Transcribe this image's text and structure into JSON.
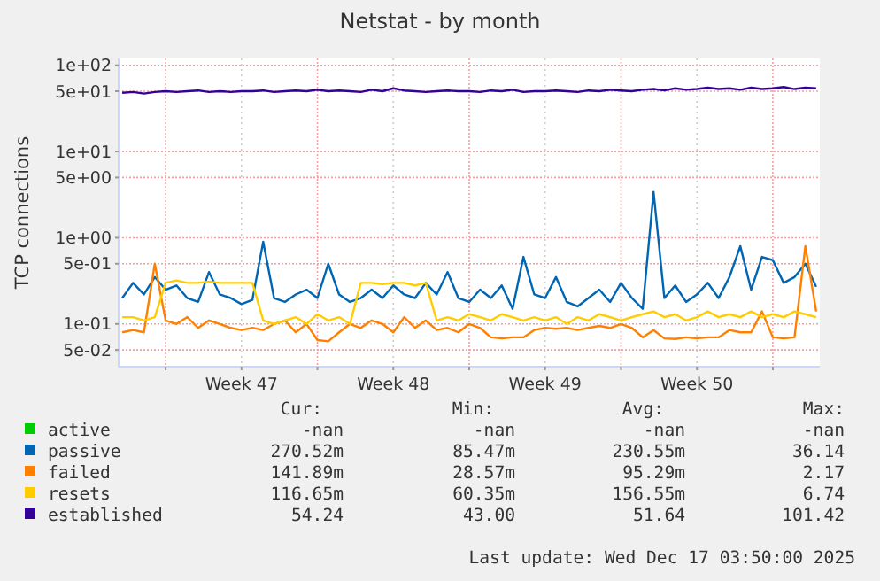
{
  "chart_data": {
    "type": "line",
    "title": "Netstat - by month",
    "ylabel": "TCP connections",
    "log": "y",
    "grid": true,
    "legend": "bottom",
    "marker": "none",
    "line_style": "solid",
    "xlim": [
      "2025-11-14T20:00",
      "2025-12-17T04:00"
    ],
    "xticks": [
      {
        "value": "2025-11-17T00:00",
        "label": null
      },
      {
        "value": "2025-11-20T12:00",
        "label": "Week 47"
      },
      {
        "value": "2025-11-24T00:00",
        "label": null
      },
      {
        "value": "2025-11-27T12:00",
        "label": "Week 48"
      },
      {
        "value": "2025-12-01T00:00",
        "label": null
      },
      {
        "value": "2025-12-04T12:00",
        "label": "Week 49"
      },
      {
        "value": "2025-12-08T00:00",
        "label": null
      },
      {
        "value": "2025-12-11T12:00",
        "label": "Week 50"
      },
      {
        "value": "2025-12-15T00:00",
        "label": null
      }
    ],
    "ylim": [
      0.032,
      120
    ],
    "yticks": [
      {
        "value": 0.05,
        "label": "5e-02"
      },
      {
        "value": 0.1,
        "label": "1e-01"
      },
      {
        "value": 0.5,
        "label": "5e-01"
      },
      {
        "value": 1,
        "label": "1e+00"
      },
      {
        "value": 5,
        "label": "5e+00"
      },
      {
        "value": 10,
        "label": "1e+01"
      },
      {
        "value": 50,
        "label": "5e+01"
      },
      {
        "value": 100,
        "label": "1e+02"
      }
    ],
    "x": [
      "2025-11-15T00:00",
      "2025-11-15T12:00",
      "2025-11-16T00:00",
      "2025-11-16T12:00",
      "2025-11-17T00:00",
      "2025-11-17T12:00",
      "2025-11-18T00:00",
      "2025-11-18T12:00",
      "2025-11-19T00:00",
      "2025-11-19T12:00",
      "2025-11-20T00:00",
      "2025-11-20T12:00",
      "2025-11-21T00:00",
      "2025-11-21T12:00",
      "2025-11-22T00:00",
      "2025-11-22T12:00",
      "2025-11-23T00:00",
      "2025-11-23T12:00",
      "2025-11-24T00:00",
      "2025-11-24T12:00",
      "2025-11-25T00:00",
      "2025-11-25T12:00",
      "2025-11-26T00:00",
      "2025-11-26T12:00",
      "2025-11-27T00:00",
      "2025-11-27T12:00",
      "2025-11-28T00:00",
      "2025-11-28T12:00",
      "2025-11-29T00:00",
      "2025-11-29T12:00",
      "2025-11-30T00:00",
      "2025-11-30T12:00",
      "2025-12-01T00:00",
      "2025-12-01T12:00",
      "2025-12-02T00:00",
      "2025-12-02T12:00",
      "2025-12-03T00:00",
      "2025-12-03T12:00",
      "2025-12-04T00:00",
      "2025-12-04T12:00",
      "2025-12-05T00:00",
      "2025-12-05T12:00",
      "2025-12-06T00:00",
      "2025-12-06T12:00",
      "2025-12-07T00:00",
      "2025-12-07T12:00",
      "2025-12-08T00:00",
      "2025-12-08T12:00",
      "2025-12-09T00:00",
      "2025-12-09T12:00",
      "2025-12-10T00:00",
      "2025-12-10T12:00",
      "2025-12-11T00:00",
      "2025-12-11T12:00",
      "2025-12-12T00:00",
      "2025-12-12T12:00",
      "2025-12-13T00:00",
      "2025-12-13T12:00",
      "2025-12-14T00:00",
      "2025-12-14T12:00",
      "2025-12-15T00:00",
      "2025-12-15T12:00",
      "2025-12-16T00:00",
      "2025-12-16T12:00",
      "2025-12-17T00:00"
    ],
    "series": [
      {
        "name": "active",
        "color": "#00cc00",
        "values": [
          null,
          null,
          null,
          null,
          null,
          null,
          null,
          null,
          null,
          null,
          null,
          null,
          null,
          null,
          null,
          null,
          null,
          null,
          null,
          null,
          null,
          null,
          null,
          null,
          null,
          null,
          null,
          null,
          null,
          null,
          null,
          null,
          null,
          null,
          null,
          null,
          null,
          null,
          null,
          null,
          null,
          null,
          null,
          null,
          null,
          null,
          null,
          null,
          null,
          null,
          null,
          null,
          null,
          null,
          null,
          null,
          null,
          null,
          null,
          null,
          null,
          null,
          null,
          null,
          null
        ]
      },
      {
        "name": "passive",
        "color": "#0066b3",
        "values": [
          0.2,
          0.3,
          0.22,
          0.35,
          0.25,
          0.28,
          0.2,
          0.18,
          0.4,
          0.22,
          0.2,
          0.17,
          0.19,
          0.9,
          0.2,
          0.18,
          0.22,
          0.25,
          0.2,
          0.5,
          0.22,
          0.18,
          0.2,
          0.25,
          0.2,
          0.28,
          0.22,
          0.2,
          0.3,
          0.22,
          0.4,
          0.2,
          0.18,
          0.25,
          0.2,
          0.28,
          0.15,
          0.6,
          0.22,
          0.2,
          0.35,
          0.18,
          0.16,
          0.2,
          0.25,
          0.18,
          0.3,
          0.2,
          0.15,
          3.4,
          0.2,
          0.28,
          0.18,
          0.22,
          0.3,
          0.2,
          0.35,
          0.8,
          0.25,
          0.6,
          0.55,
          0.3,
          0.35,
          0.5,
          0.27
        ]
      },
      {
        "name": "failed",
        "color": "#ff8000",
        "values": [
          0.08,
          0.085,
          0.08,
          0.5,
          0.11,
          0.1,
          0.12,
          0.09,
          0.11,
          0.1,
          0.09,
          0.085,
          0.09,
          0.085,
          0.1,
          0.11,
          0.08,
          0.1,
          0.065,
          0.063,
          0.08,
          0.1,
          0.09,
          0.11,
          0.1,
          0.08,
          0.12,
          0.09,
          0.11,
          0.085,
          0.09,
          0.08,
          0.1,
          0.09,
          0.07,
          0.068,
          0.07,
          0.07,
          0.085,
          0.09,
          0.088,
          0.09,
          0.085,
          0.09,
          0.095,
          0.09,
          0.1,
          0.09,
          0.07,
          0.085,
          0.068,
          0.067,
          0.07,
          0.068,
          0.07,
          0.07,
          0.085,
          0.08,
          0.08,
          0.14,
          0.07,
          0.068,
          0.07,
          0.8,
          0.14
        ]
      },
      {
        "name": "resets",
        "color": "#ffcc00",
        "values": [
          0.12,
          0.12,
          0.11,
          0.12,
          0.3,
          0.32,
          0.3,
          0.3,
          0.31,
          0.3,
          0.3,
          0.3,
          0.3,
          0.11,
          0.1,
          0.11,
          0.12,
          0.1,
          0.13,
          0.11,
          0.12,
          0.1,
          0.3,
          0.3,
          0.29,
          0.3,
          0.3,
          0.28,
          0.3,
          0.11,
          0.12,
          0.11,
          0.13,
          0.12,
          0.11,
          0.13,
          0.12,
          0.11,
          0.12,
          0.11,
          0.12,
          0.1,
          0.12,
          0.11,
          0.13,
          0.12,
          0.11,
          0.12,
          0.13,
          0.14,
          0.12,
          0.13,
          0.11,
          0.12,
          0.14,
          0.12,
          0.13,
          0.12,
          0.14,
          0.12,
          0.13,
          0.12,
          0.14,
          0.13,
          0.12
        ]
      },
      {
        "name": "established",
        "color": "#330099",
        "values": [
          48,
          49,
          47,
          49,
          50,
          49,
          50,
          51,
          49,
          50,
          49,
          50,
          50,
          51,
          49,
          50,
          51,
          50,
          52,
          50,
          51,
          50,
          49,
          52,
          50,
          54,
          51,
          50,
          49,
          50,
          51,
          50,
          50,
          49,
          51,
          50,
          52,
          49,
          50,
          50,
          51,
          50,
          49,
          51,
          50,
          52,
          51,
          50,
          52,
          53,
          51,
          54,
          52,
          53,
          55,
          53,
          54,
          52,
          55,
          53,
          54,
          56,
          53,
          55,
          54
        ]
      }
    ],
    "annotations": [
      "Cur:",
      "Min:",
      "Avg:",
      "Max:",
      "-nan",
      "-nan",
      "-nan",
      "-nan",
      "270.52m",
      "85.47m",
      "230.55m",
      "36.14",
      "141.89m",
      "28.57m",
      "95.29m",
      "2.17",
      "116.65m",
      "60.35m",
      "156.55m",
      "6.74",
      "54.24",
      "43.00",
      "51.64",
      "101.42",
      "Last update: Wed Dec 17 03:50:00 2025"
    ]
  }
}
